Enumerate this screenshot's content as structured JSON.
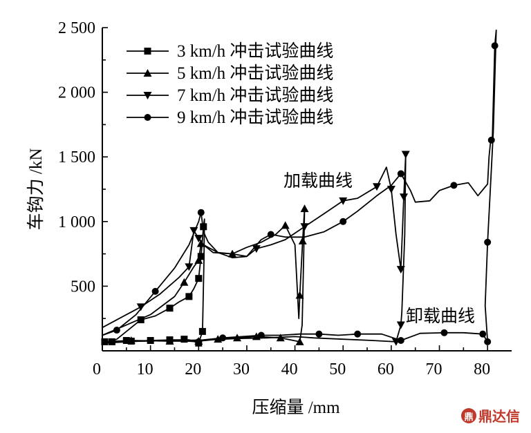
{
  "chart_data": {
    "type": "line",
    "title": "",
    "xlabel": "压缩量 /mm",
    "ylabel": "车钩力 /kN",
    "xlim": [
      0,
      85
    ],
    "ylim": [
      0,
      2500
    ],
    "x_ticks": [
      0,
      10,
      20,
      30,
      40,
      50,
      60,
      70,
      80
    ],
    "x_tick_labels": [
      "0",
      "10",
      "20",
      "30",
      "40",
      "50",
      "60",
      "70",
      "80"
    ],
    "y_ticks": [
      500,
      1000,
      1500,
      2000,
      2500
    ],
    "y_tick_labels": [
      "500",
      "1 000",
      "1 500",
      "2 000",
      "2 500"
    ],
    "legend_position": "top-left",
    "annotations": [
      {
        "text": "加载曲线",
        "x": 47,
        "y": 1230
      },
      {
        "text": "卸载曲线",
        "x": 71,
        "y": 250
      }
    ],
    "watermark": "鼎达信",
    "series": [
      {
        "name": "3 km/h 冲击试验曲线",
        "marker": "square",
        "markers": [
          [
            0.5,
            70
          ],
          [
            5,
            80
          ],
          [
            8,
            240
          ],
          [
            14,
            330
          ],
          [
            18,
            420
          ],
          [
            20,
            560
          ],
          [
            20.5,
            730
          ],
          [
            21,
            960
          ],
          [
            20.8,
            150
          ],
          [
            20,
            60
          ],
          [
            17,
            90
          ],
          [
            14,
            85
          ],
          [
            10,
            80
          ],
          [
            6,
            75
          ],
          [
            2,
            70
          ]
        ],
        "path": [
          [
            0,
            60
          ],
          [
            3,
            90
          ],
          [
            6,
            180
          ],
          [
            8,
            240
          ],
          [
            11,
            270
          ],
          [
            14,
            330
          ],
          [
            16,
            380
          ],
          [
            18,
            420
          ],
          [
            19,
            480
          ],
          [
            20,
            560
          ],
          [
            20.5,
            730
          ],
          [
            21,
            960
          ],
          [
            21.2,
            1020
          ],
          [
            21.1,
            700
          ],
          [
            20.8,
            150
          ],
          [
            20,
            60
          ],
          [
            18,
            85
          ],
          [
            15,
            85
          ],
          [
            10,
            80
          ],
          [
            6,
            75
          ],
          [
            2,
            70
          ],
          [
            0,
            60
          ]
        ]
      },
      {
        "name": "5 km/h 冲击试验曲线",
        "marker": "triangle-up",
        "markers": [
          [
            17,
            530
          ],
          [
            20,
            700
          ],
          [
            20.5,
            830
          ],
          [
            27,
            750
          ],
          [
            38,
            970
          ],
          [
            41,
            430
          ],
          [
            41.6,
            850
          ],
          [
            42,
            1100
          ],
          [
            41,
            70
          ],
          [
            37,
            100
          ],
          [
            32,
            110
          ],
          [
            28,
            100
          ],
          [
            24,
            90
          ],
          [
            20,
            75
          ],
          [
            14,
            75
          ],
          [
            6,
            80
          ]
        ],
        "path": [
          [
            0,
            120
          ],
          [
            5,
            200
          ],
          [
            10,
            280
          ],
          [
            15,
            420
          ],
          [
            17,
            530
          ],
          [
            19,
            650
          ],
          [
            20,
            700
          ],
          [
            20.5,
            830
          ],
          [
            21,
            820
          ],
          [
            23,
            760
          ],
          [
            27,
            750
          ],
          [
            30,
            800
          ],
          [
            33,
            840
          ],
          [
            36,
            900
          ],
          [
            38,
            970
          ],
          [
            40,
            820
          ],
          [
            40.8,
            250
          ],
          [
            41,
            430
          ],
          [
            41.6,
            850
          ],
          [
            42,
            1100
          ],
          [
            41.8,
            700
          ],
          [
            41.5,
            200
          ],
          [
            41,
            70
          ],
          [
            37,
            100
          ],
          [
            32,
            110
          ],
          [
            28,
            100
          ],
          [
            24,
            90
          ],
          [
            20,
            75
          ],
          [
            14,
            75
          ],
          [
            6,
            80
          ],
          [
            0,
            70
          ]
        ]
      },
      {
        "name": "7 km/h 冲击试验曲线",
        "marker": "triangle-down",
        "markers": [
          [
            8,
            340
          ],
          [
            18,
            650
          ],
          [
            19,
            930
          ],
          [
            20,
            870
          ],
          [
            32,
            790
          ],
          [
            42,
            960
          ],
          [
            50,
            1160
          ],
          [
            57,
            1270
          ],
          [
            60,
            1250
          ],
          [
            62,
            630
          ],
          [
            62.6,
            1190
          ],
          [
            63,
            1520
          ],
          [
            62,
            200
          ],
          [
            61,
            70
          ]
        ],
        "path": [
          [
            0,
            180
          ],
          [
            4,
            260
          ],
          [
            8,
            340
          ],
          [
            12,
            440
          ],
          [
            16,
            570
          ],
          [
            18,
            650
          ],
          [
            19,
            930
          ],
          [
            20,
            870
          ],
          [
            21,
            820
          ],
          [
            24,
            760
          ],
          [
            27,
            750
          ],
          [
            30,
            730
          ],
          [
            32,
            790
          ],
          [
            35,
            820
          ],
          [
            38,
            860
          ],
          [
            42,
            960
          ],
          [
            46,
            1060
          ],
          [
            50,
            1160
          ],
          [
            53,
            1180
          ],
          [
            57,
            1270
          ],
          [
            59,
            1420
          ],
          [
            60,
            1250
          ],
          [
            61,
            900
          ],
          [
            62,
            630
          ],
          [
            62.6,
            1190
          ],
          [
            63,
            1520
          ],
          [
            62.8,
            900
          ],
          [
            62.2,
            300
          ],
          [
            62,
            200
          ],
          [
            61,
            70
          ],
          [
            56,
            80
          ],
          [
            50,
            90
          ],
          [
            44,
            100
          ],
          [
            40,
            110
          ],
          [
            34,
            100
          ],
          [
            28,
            95
          ],
          [
            22,
            85
          ],
          [
            16,
            80
          ],
          [
            8,
            75
          ],
          [
            0,
            70
          ]
        ]
      },
      {
        "name": "9 km/h 冲击试验曲线",
        "marker": "circle",
        "markers": [
          [
            3,
            160
          ],
          [
            11,
            460
          ],
          [
            20.5,
            1070
          ],
          [
            35,
            900
          ],
          [
            50,
            1000
          ],
          [
            62,
            1370
          ],
          [
            73,
            1280
          ],
          [
            80,
            840
          ],
          [
            80.8,
            1630
          ],
          [
            81.5,
            2360
          ],
          [
            80,
            70
          ],
          [
            79,
            130
          ],
          [
            71,
            140
          ],
          [
            62,
            80
          ],
          [
            53,
            130
          ],
          [
            45,
            130
          ],
          [
            33,
            120
          ],
          [
            25,
            100
          ],
          [
            20,
            70
          ]
        ],
        "path": [
          [
            0,
            120
          ],
          [
            3,
            160
          ],
          [
            7,
            280
          ],
          [
            11,
            460
          ],
          [
            15,
            640
          ],
          [
            18,
            820
          ],
          [
            20,
            1000
          ],
          [
            20.5,
            1070
          ],
          [
            21,
            920
          ],
          [
            22,
            840
          ],
          [
            24,
            760
          ],
          [
            27,
            720
          ],
          [
            30,
            730
          ],
          [
            33,
            860
          ],
          [
            35,
            900
          ],
          [
            38,
            880
          ],
          [
            42,
            880
          ],
          [
            46,
            920
          ],
          [
            50,
            1000
          ],
          [
            53,
            1080
          ],
          [
            57,
            1200
          ],
          [
            60,
            1280
          ],
          [
            62,
            1370
          ],
          [
            64,
            1240
          ],
          [
            65,
            1150
          ],
          [
            68,
            1160
          ],
          [
            70,
            1240
          ],
          [
            73,
            1280
          ],
          [
            76,
            1300
          ],
          [
            78,
            1200
          ],
          [
            80,
            1290
          ],
          [
            80.3,
            1500
          ],
          [
            80.6,
            1610
          ],
          [
            81,
            1640
          ],
          [
            81.5,
            2360
          ],
          [
            81.8,
            2480
          ],
          [
            81.2,
            1700
          ],
          [
            80.5,
            1200
          ],
          [
            80,
            840
          ],
          [
            79.5,
            350
          ],
          [
            80,
            70
          ],
          [
            79,
            130
          ],
          [
            75,
            140
          ],
          [
            71,
            140
          ],
          [
            66,
            135
          ],
          [
            62,
            80
          ],
          [
            58,
            130
          ],
          [
            53,
            130
          ],
          [
            49,
            120
          ],
          [
            45,
            130
          ],
          [
            41,
            130
          ],
          [
            37,
            120
          ],
          [
            33,
            120
          ],
          [
            29,
            110
          ],
          [
            25,
            100
          ],
          [
            21,
            85
          ],
          [
            20,
            70
          ],
          [
            15,
            80
          ],
          [
            8,
            75
          ],
          [
            0,
            60
          ]
        ]
      }
    ]
  }
}
